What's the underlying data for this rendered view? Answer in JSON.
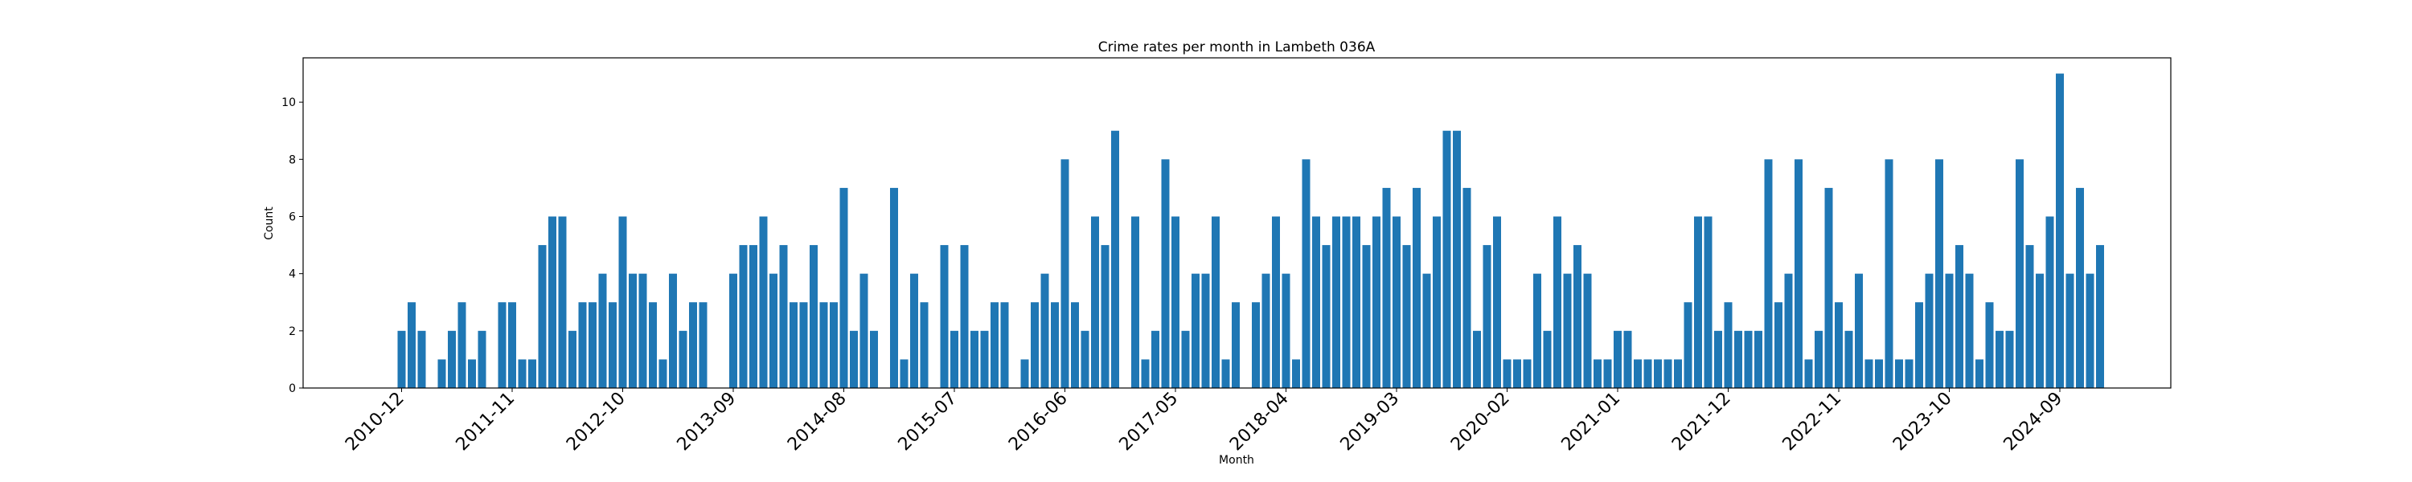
{
  "chart_data": {
    "type": "bar",
    "title": "Crime rates per month in Lambeth 036A",
    "xlabel": "Month",
    "ylabel": "Count",
    "ylim": [
      0,
      11.55
    ],
    "yticks": [
      0,
      2,
      4,
      6,
      8,
      10
    ],
    "xtick_labels": [
      "2010-12",
      "2011-11",
      "2012-10",
      "2013-09",
      "2014-08",
      "2015-07",
      "2016-06",
      "2017-05",
      "2018-04",
      "2019-03",
      "2020-02",
      "2021-01",
      "2021-12",
      "2022-11",
      "2023-10",
      "2024-09"
    ],
    "xtick_rotation": 45,
    "bar_color": "#1f77b4",
    "grid": false,
    "start_month": "2010-12",
    "values": [
      2,
      3,
      2,
      0,
      1,
      2,
      3,
      1,
      2,
      0,
      3,
      3,
      1,
      1,
      5,
      6,
      6,
      2,
      3,
      3,
      4,
      3,
      6,
      4,
      4,
      3,
      1,
      4,
      2,
      3,
      3,
      0,
      0,
      4,
      5,
      5,
      6,
      4,
      5,
      3,
      3,
      5,
      3,
      3,
      7,
      2,
      4,
      2,
      0,
      7,
      1,
      4,
      3,
      0,
      5,
      2,
      5,
      2,
      2,
      3,
      3,
      0,
      1,
      3,
      4,
      3,
      8,
      3,
      2,
      6,
      5,
      9,
      0,
      6,
      1,
      2,
      8,
      6,
      2,
      4,
      4,
      6,
      1,
      3,
      0,
      3,
      4,
      6,
      4,
      1,
      8,
      6,
      5,
      6,
      6,
      6,
      5,
      6,
      7,
      6,
      5,
      7,
      4,
      6,
      9,
      9,
      7,
      2,
      5,
      6,
      1,
      1,
      1,
      4,
      2,
      6,
      4,
      5,
      4,
      1,
      1,
      2,
      2,
      1,
      1,
      1,
      1,
      1,
      3,
      6,
      6,
      2,
      3,
      2,
      2,
      2,
      8,
      3,
      4,
      8,
      1,
      2,
      7,
      3,
      2,
      4,
      1,
      1,
      8,
      1,
      1,
      3,
      4,
      8,
      4,
      5,
      4,
      1,
      3,
      2,
      2,
      8,
      5,
      4,
      6,
      11,
      4,
      7,
      4,
      5
    ]
  }
}
